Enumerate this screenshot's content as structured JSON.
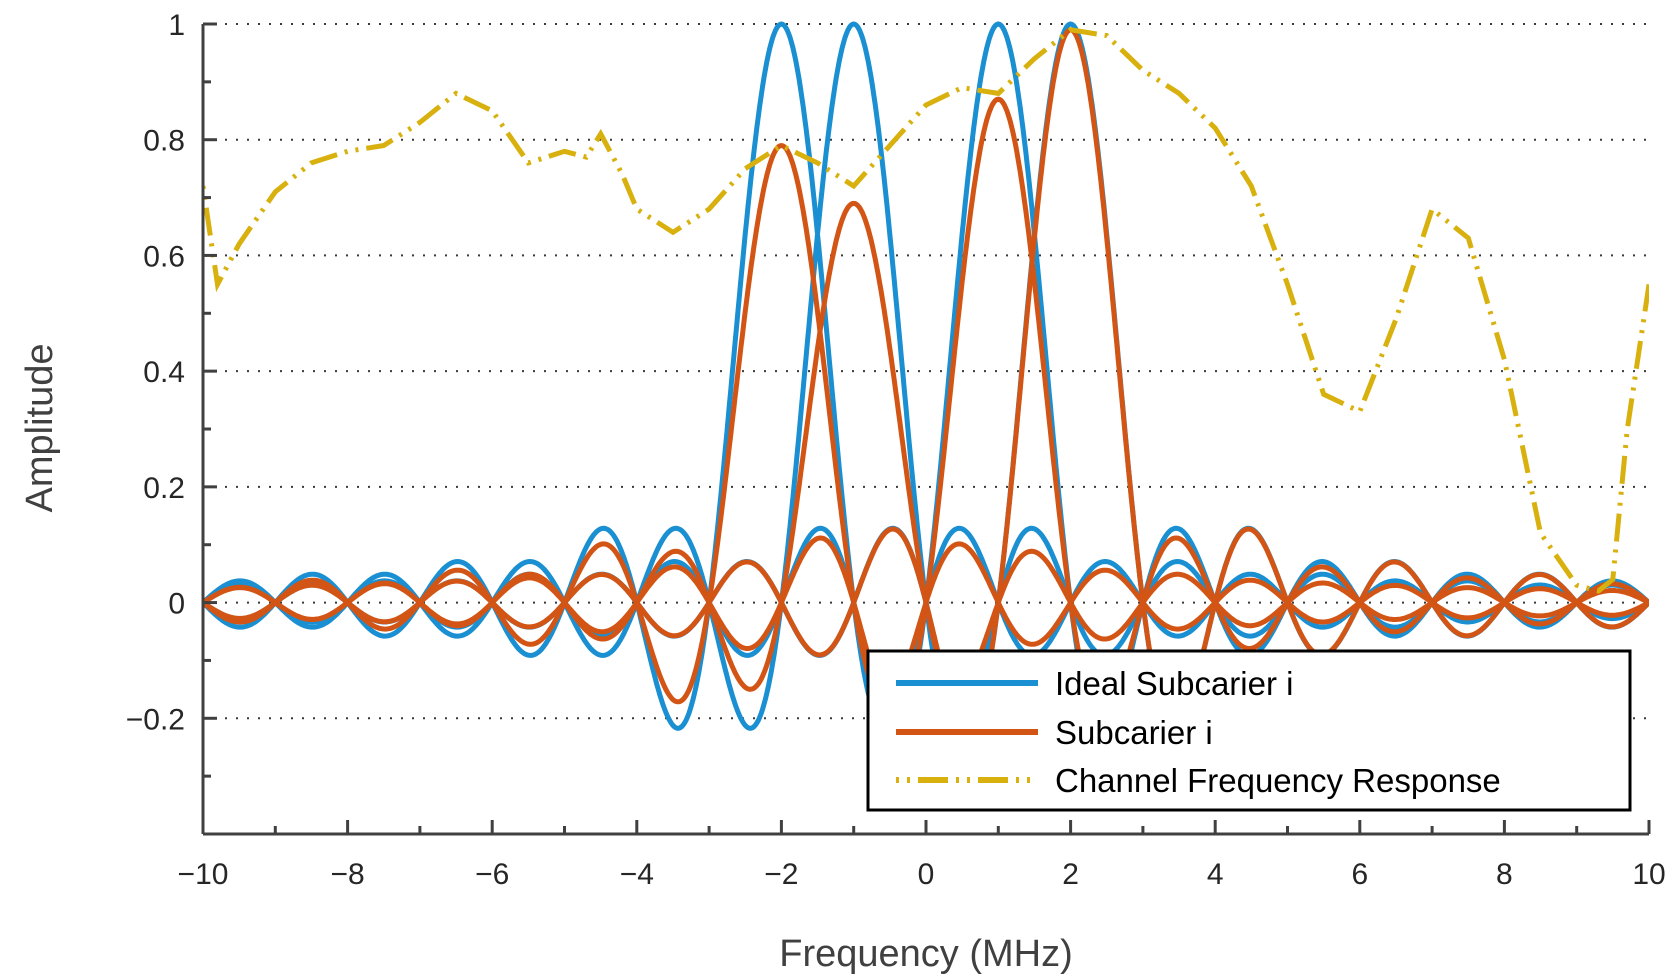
{
  "chart_data": {
    "type": "line",
    "xlabel": "Frequency (MHz)",
    "ylabel": "Amplitude",
    "xlim": [
      -10,
      10
    ],
    "ylim": [
      -0.4,
      1
    ],
    "xticks": [
      -10,
      -8,
      -6,
      -4,
      -2,
      0,
      2,
      4,
      6,
      8,
      10
    ],
    "xtick_labels": [
      "−10",
      "−8",
      "−6",
      "−4",
      "−2",
      "0",
      "2",
      "4",
      "6",
      "8",
      "10"
    ],
    "yticks": [
      -0.2,
      0,
      0.2,
      0.4,
      0.6,
      0.8,
      1
    ],
    "ytick_labels": [
      "−0.2",
      "0",
      "0.2",
      "0.4",
      "0.6",
      "0.8",
      "1"
    ],
    "grid": "dotted horizontal",
    "legend_position": "bottom-right",
    "legend": [
      {
        "label": "Ideal Subcarier i",
        "color": "#1a8fd1",
        "style": "solid"
      },
      {
        "label": "Subcarier i",
        "color": "#d35515",
        "style": "solid"
      },
      {
        "label": "Channel Frequency Response",
        "color": "#d8b10e",
        "style": "dash-dot"
      }
    ],
    "series": [
      {
        "role": "ideal",
        "color": "#1a8fd1",
        "subcarrier_centers": [
          -2,
          -1,
          1,
          2
        ],
        "subcarrier_spacing": 1,
        "peak_amplitude": 1,
        "note_shape": "sinc"
      },
      {
        "role": "received",
        "color": "#d35515",
        "subcarrier_centers": [
          -2,
          -1,
          1,
          2
        ],
        "peak_amplitudes": [
          0.79,
          0.69,
          0.87,
          0.99
        ]
      },
      {
        "role": "channel",
        "color": "#d8b10e",
        "x": [
          -10,
          -9.8,
          -9.5,
          -9,
          -8.5,
          -8,
          -7.5,
          -7,
          -6.5,
          -6,
          -5.5,
          -5,
          -4.7,
          -4.5,
          -4.2,
          -4,
          -3.5,
          -3,
          -2.5,
          -2,
          -1.5,
          -1,
          -0.5,
          0,
          0.5,
          1,
          1.5,
          2,
          2.5,
          3,
          3.5,
          4,
          4.5,
          5,
          5.5,
          6,
          6.5,
          7,
          7.5,
          8,
          8.5,
          9,
          9.3,
          9.5,
          9.7,
          10
        ],
        "y": [
          0.72,
          0.55,
          0.62,
          0.71,
          0.76,
          0.78,
          0.79,
          0.83,
          0.88,
          0.85,
          0.76,
          0.78,
          0.77,
          0.81,
          0.74,
          0.68,
          0.64,
          0.68,
          0.75,
          0.79,
          0.76,
          0.72,
          0.79,
          0.86,
          0.89,
          0.88,
          0.94,
          0.99,
          0.98,
          0.92,
          0.88,
          0.82,
          0.72,
          0.55,
          0.36,
          0.33,
          0.49,
          0.68,
          0.63,
          0.42,
          0.12,
          0.03,
          0.02,
          0.04,
          0.3,
          0.55
        ]
      }
    ]
  }
}
